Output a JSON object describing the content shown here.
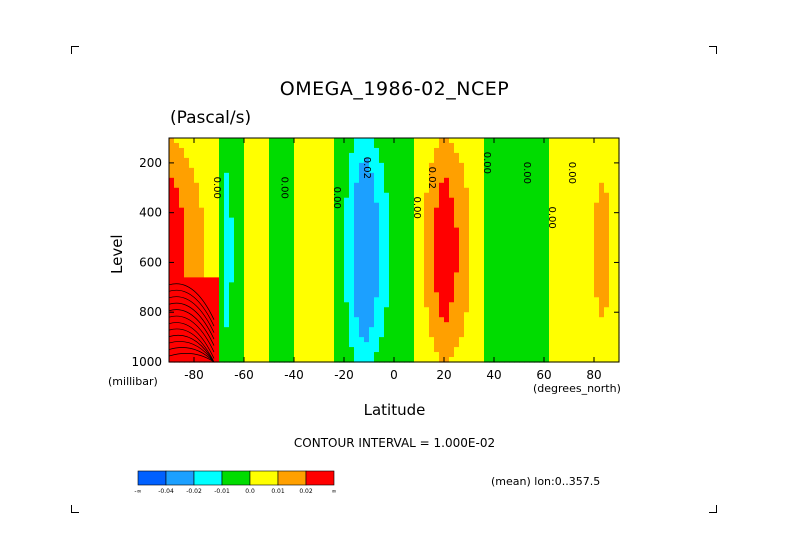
{
  "chart_data": {
    "type": "heatmap",
    "title": "OMEGA_1986-02_NCEP",
    "units": "(Pascal/s)",
    "xlabel": "Latitude",
    "ylabel": "Level",
    "x_units": "(degrees_north)",
    "y_units": "(millibar)",
    "xlim": [
      -90,
      90
    ],
    "ylim": [
      1000,
      100
    ],
    "x_ticks": [
      -80,
      -60,
      -40,
      -20,
      0,
      20,
      40,
      60,
      80
    ],
    "x_tick_labels": [
      "-80",
      "-60",
      "-40",
      "-20",
      "0",
      "20",
      "40",
      "60",
      "80"
    ],
    "y_ticks": [
      200,
      400,
      600,
      800,
      1000
    ],
    "y_tick_labels": [
      "200",
      "400",
      "600",
      "800",
      "1000"
    ],
    "contour_interval_text": "CONTOUR INTERVAL = 1.000E-02",
    "mean_text": "(mean) lon:0..357.5",
    "colorbar": {
      "colors": [
        "#0060ff",
        "#1ca0ff",
        "#00ffff",
        "#00dc00",
        "#ffff00",
        "#ffa000",
        "#ff0000"
      ],
      "labels": [
        "-∞",
        "-0.04",
        "-0.02",
        "-0.01",
        "0.0",
        "0.01",
        "0.02",
        "∞"
      ]
    },
    "contour_labels": [
      "0.00",
      "0.00",
      "0.00",
      "0.02",
      "0.02",
      "0.00",
      "0.00",
      "0.00",
      "0.00",
      "0.00"
    ],
    "bands": [
      {
        "lat": -90,
        "val": 0.03
      },
      {
        "lat": -80,
        "val": 0.015
      },
      {
        "lat": -72,
        "val": 0.005
      },
      {
        "lat": -67,
        "val": -0.015
      },
      {
        "lat": -60,
        "val": 0.0
      },
      {
        "lat": -50,
        "val": 0.0
      },
      {
        "lat": -44,
        "val": -0.005
      },
      {
        "lat": -35,
        "val": 0.005
      },
      {
        "lat": -28,
        "val": 0.005
      },
      {
        "lat": -20,
        "val": -0.008
      },
      {
        "lat": -12,
        "val": -0.04
      },
      {
        "lat": -6,
        "val": -0.02
      },
      {
        "lat": 0,
        "val": -0.005
      },
      {
        "lat": 8,
        "val": 0.0
      },
      {
        "lat": 14,
        "val": 0.015
      },
      {
        "lat": 20,
        "val": 0.03
      },
      {
        "lat": 28,
        "val": 0.015
      },
      {
        "lat": 35,
        "val": 0.0
      },
      {
        "lat": 42,
        "val": -0.008
      },
      {
        "lat": 50,
        "val": 0.0
      },
      {
        "lat": 58,
        "val": -0.008
      },
      {
        "lat": 66,
        "val": 0.005
      },
      {
        "lat": 75,
        "val": 0.005
      },
      {
        "lat": 84,
        "val": 0.015
      },
      {
        "lat": 90,
        "val": 0.0
      }
    ]
  }
}
